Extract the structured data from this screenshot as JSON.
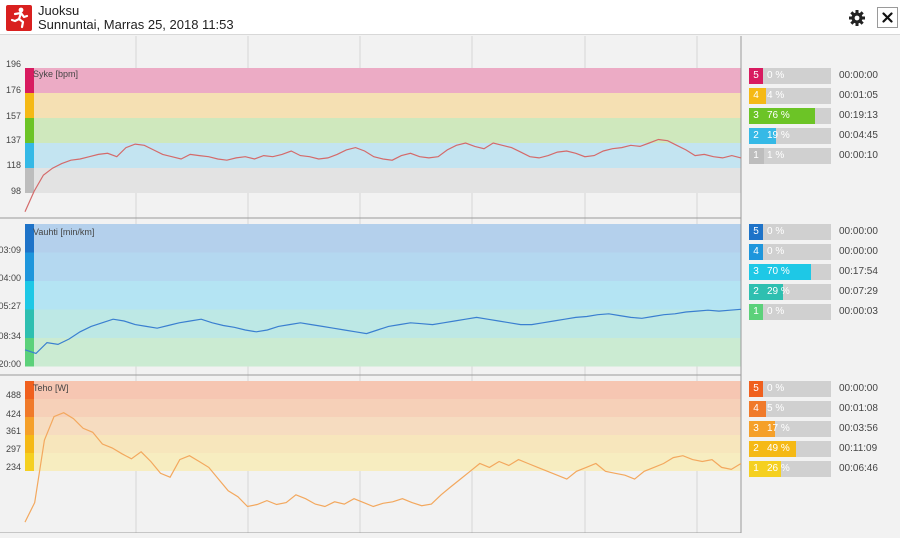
{
  "header": {
    "title": "Juoksu",
    "subtitle": "Sunnuntai, Marras 25, 2018 11:53",
    "settings_icon": "gear-icon",
    "close_icon": "close-icon",
    "app_icon": "running-person-icon"
  },
  "colors": {
    "hr_z5": "#d81b60",
    "hr_z4": "#f5b915",
    "hr_z3": "#6cc426",
    "hr_z2": "#35b9e6",
    "hr_z1": "#bdbdbd",
    "pace_z5": "#1e73c8",
    "pace_z4": "#1e96dc",
    "pace_z3": "#1ec8e6",
    "pace_z2": "#2ebfb0",
    "pace_z1": "#5cd17a",
    "pow_z5": "#f0601e",
    "pow_z4": "#f07a2a",
    "pow_z3": "#f5a02a",
    "pow_z2": "#f5b915",
    "pow_z1": "#f5d020"
  },
  "panels": [
    {
      "label": "Syke [bpm]",
      "y_ticks": [
        "196",
        "176",
        "157",
        "137",
        "118",
        "98"
      ],
      "zones": [
        {
          "num": "5",
          "pct": "0 %",
          "fraction": 0.0,
          "time": "00:00:00"
        },
        {
          "num": "4",
          "pct": "4 %",
          "fraction": 0.04,
          "time": "00:01:05"
        },
        {
          "num": "3",
          "pct": "76 %",
          "fraction": 0.76,
          "time": "00:19:13"
        },
        {
          "num": "2",
          "pct": "19 %",
          "fraction": 0.19,
          "time": "00:04:45"
        },
        {
          "num": "1",
          "pct": "1 %",
          "fraction": 0.01,
          "time": "00:00:10"
        }
      ]
    },
    {
      "label": "Vauhti [min/km]",
      "y_ticks": [
        "03:09",
        "04:00",
        "05:27",
        "08:34",
        "20:00"
      ],
      "zones": [
        {
          "num": "5",
          "pct": "0 %",
          "fraction": 0.0,
          "time": "00:00:00"
        },
        {
          "num": "4",
          "pct": "0 %",
          "fraction": 0.0,
          "time": "00:00:00"
        },
        {
          "num": "3",
          "pct": "70 %",
          "fraction": 0.7,
          "time": "00:17:54"
        },
        {
          "num": "2",
          "pct": "29 %",
          "fraction": 0.29,
          "time": "00:07:29"
        },
        {
          "num": "1",
          "pct": "0 %",
          "fraction": 0.0,
          "time": "00:00:03"
        }
      ]
    },
    {
      "label": "Teho [W]",
      "y_ticks": [
        "488",
        "424",
        "361",
        "297",
        "234"
      ],
      "zones": [
        {
          "num": "5",
          "pct": "0 %",
          "fraction": 0.0,
          "time": "00:00:00"
        },
        {
          "num": "4",
          "pct": "5 %",
          "fraction": 0.05,
          "time": "00:01:08"
        },
        {
          "num": "3",
          "pct": "17 %",
          "fraction": 0.17,
          "time": "00:03:56"
        },
        {
          "num": "2",
          "pct": "49 %",
          "fraction": 0.49,
          "time": "00:11:09"
        },
        {
          "num": "1",
          "pct": "26 %",
          "fraction": 0.26,
          "time": "00:06:46"
        }
      ]
    }
  ],
  "chart_data": [
    {
      "type": "line",
      "title": "",
      "ylabel": "Syke [bpm]",
      "ylim": [
        90,
        200
      ],
      "series": [
        {
          "name": "Syke",
          "values": [
            92,
            110,
            124,
            130,
            134,
            137,
            138,
            140,
            142,
            143,
            140,
            148,
            151,
            150,
            146,
            142,
            140,
            138,
            142,
            141,
            140,
            138,
            137,
            139,
            140,
            138,
            141,
            140,
            142,
            145,
            141,
            140,
            138,
            139,
            142,
            146,
            148,
            145,
            140,
            138,
            137,
            141,
            143,
            140,
            139,
            140,
            146,
            150,
            152,
            149,
            147,
            152,
            150,
            148,
            144,
            140,
            139,
            141,
            144,
            145,
            143,
            140,
            141,
            145,
            147,
            148,
            150,
            149,
            152,
            155,
            154,
            150,
            146,
            141,
            142,
            140,
            139,
            141,
            139
          ]
        }
      ]
    },
    {
      "type": "line",
      "title": "",
      "ylabel": "Vauhti [min/km]",
      "ylim": [
        0,
        100
      ],
      "series": [
        {
          "name": "Vauhti",
          "values": [
            18,
            14,
            26,
            24,
            30,
            38,
            44,
            48,
            52,
            50,
            46,
            44,
            42,
            45,
            48,
            50,
            52,
            48,
            45,
            43,
            40,
            38,
            40,
            44,
            46,
            48,
            46,
            44,
            42,
            40,
            38,
            36,
            40,
            44,
            46,
            48,
            47,
            46,
            48,
            50,
            52,
            54,
            52,
            50,
            48,
            46,
            46,
            48,
            50,
            52,
            54,
            55,
            57,
            58,
            56,
            54,
            53,
            55,
            57,
            58,
            60,
            61,
            62,
            61,
            62,
            63
          ]
        }
      ]
    },
    {
      "type": "line",
      "title": "",
      "ylabel": "Teho [W]",
      "ylim": [
        180,
        500
      ],
      "series": [
        {
          "name": "Teho",
          "values": [
            190,
            240,
            400,
            460,
            470,
            455,
            430,
            420,
            390,
            380,
            365,
            352,
            370,
            345,
            315,
            305,
            350,
            360,
            345,
            330,
            300,
            270,
            255,
            230,
            235,
            245,
            235,
            240,
            260,
            250,
            236,
            230,
            242,
            236,
            250,
            240,
            230,
            238,
            242,
            250,
            240,
            232,
            236,
            260,
            280,
            300,
            320,
            340,
            330,
            345,
            335,
            350,
            340,
            330,
            320,
            310,
            300,
            320,
            330,
            340,
            320,
            315,
            310,
            300,
            320,
            330,
            340,
            355,
            360,
            350,
            345,
            350,
            330,
            325,
            340
          ]
        }
      ]
    }
  ]
}
